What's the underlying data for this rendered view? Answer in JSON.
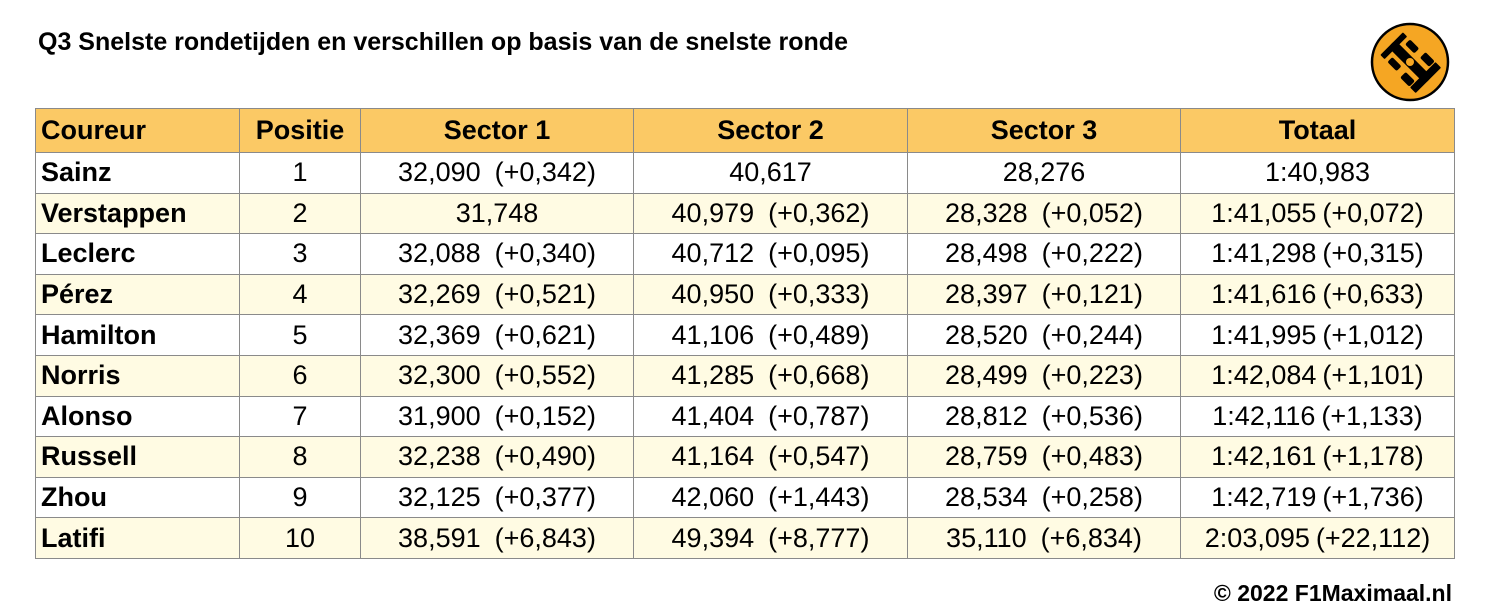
{
  "title": "Q3 Snelste rondetijden en verschillen op basis van de snelste ronde",
  "colors": {
    "header_bg": "#fbc965",
    "row_alt_bg": "#fffbe3",
    "logo_bg": "#f5a623"
  },
  "logo_icon": "f1-car-icon",
  "columns": [
    "Coureur",
    "Positie",
    "Sector 1",
    "Sector 2",
    "Sector 3",
    "Totaal"
  ],
  "rows": [
    {
      "driver": "Sainz",
      "pos": "1",
      "s1": "32,090",
      "s1d": "(+0,342)",
      "s2": "40,617",
      "s2d": "",
      "s3": "28,276",
      "s3d": "",
      "tot": "1:40,983",
      "totd": ""
    },
    {
      "driver": "Verstappen",
      "pos": "2",
      "s1": "31,748",
      "s1d": "",
      "s2": "40,979",
      "s2d": "(+0,362)",
      "s3": "28,328",
      "s3d": "(+0,052)",
      "tot": "1:41,055",
      "totd": "(+0,072)"
    },
    {
      "driver": "Leclerc",
      "pos": "3",
      "s1": "32,088",
      "s1d": "(+0,340)",
      "s2": "40,712",
      "s2d": "(+0,095)",
      "s3": "28,498",
      "s3d": "(+0,222)",
      "tot": "1:41,298",
      "totd": "(+0,315)"
    },
    {
      "driver": "Pérez",
      "pos": "4",
      "s1": "32,269",
      "s1d": "(+0,521)",
      "s2": "40,950",
      "s2d": "(+0,333)",
      "s3": "28,397",
      "s3d": "(+0,121)",
      "tot": "1:41,616",
      "totd": "(+0,633)"
    },
    {
      "driver": "Hamilton",
      "pos": "5",
      "s1": "32,369",
      "s1d": "(+0,621)",
      "s2": "41,106",
      "s2d": "(+0,489)",
      "s3": "28,520",
      "s3d": "(+0,244)",
      "tot": "1:41,995",
      "totd": "(+1,012)"
    },
    {
      "driver": "Norris",
      "pos": "6",
      "s1": "32,300",
      "s1d": "(+0,552)",
      "s2": "41,285",
      "s2d": "(+0,668)",
      "s3": "28,499",
      "s3d": "(+0,223)",
      "tot": "1:42,084",
      "totd": "(+1,101)"
    },
    {
      "driver": "Alonso",
      "pos": "7",
      "s1": "31,900",
      "s1d": "(+0,152)",
      "s2": "41,404",
      "s2d": "(+0,787)",
      "s3": "28,812",
      "s3d": "(+0,536)",
      "tot": "1:42,116",
      "totd": "(+1,133)"
    },
    {
      "driver": "Russell",
      "pos": "8",
      "s1": "32,238",
      "s1d": "(+0,490)",
      "s2": "41,164",
      "s2d": "(+0,547)",
      "s3": "28,759",
      "s3d": "(+0,483)",
      "tot": "1:42,161",
      "totd": "(+1,178)"
    },
    {
      "driver": "Zhou",
      "pos": "9",
      "s1": "32,125",
      "s1d": "(+0,377)",
      "s2": "42,060",
      "s2d": "(+1,443)",
      "s3": "28,534",
      "s3d": "(+0,258)",
      "tot": "1:42,719",
      "totd": "(+1,736)"
    },
    {
      "driver": "Latifi",
      "pos": "10",
      "s1": "38,591",
      "s1d": "(+6,843)",
      "s2": "49,394",
      "s2d": "(+8,777)",
      "s3": "35,110",
      "s3d": "(+6,834)",
      "tot": "2:03,095",
      "totd": "(+22,112)"
    }
  ],
  "copyright": "© 2022 F1Maximaal.nl"
}
